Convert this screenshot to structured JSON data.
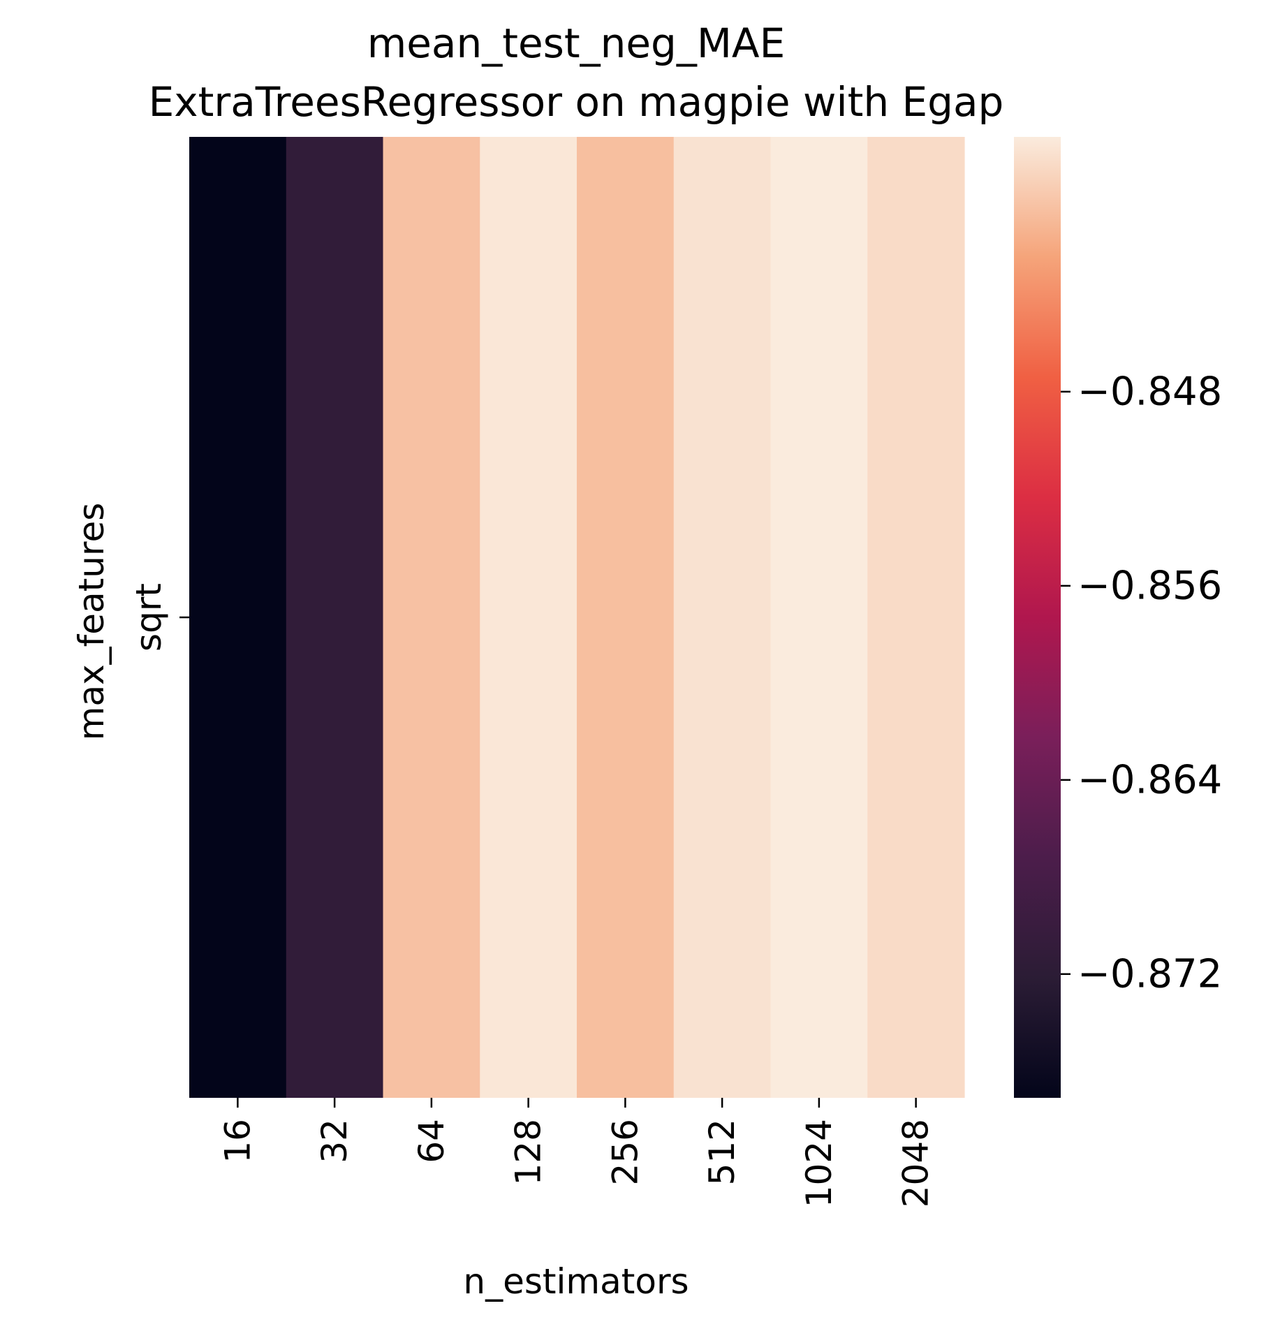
{
  "chart_data": {
    "type": "heatmap",
    "title": "mean_test_neg_MAE",
    "subtitle": "ExtraTreesRegressor on magpie with Egap",
    "xlabel": "n_estimators",
    "ylabel": "max_features",
    "x_categories": [
      "16",
      "32",
      "64",
      "128",
      "256",
      "512",
      "1024",
      "2048"
    ],
    "y_categories": [
      "sqrt"
    ],
    "values": [
      [
        -0.8771,
        -0.8713,
        -0.8404,
        -0.8378,
        -0.8406,
        -0.8381,
        -0.8375,
        -0.8386
      ]
    ],
    "colormap": "rocket",
    "colorbar": {
      "vmin": -0.8771,
      "vmax": -0.8375,
      "ticks": [
        -0.872,
        -0.864,
        -0.856,
        -0.848
      ],
      "tick_labels": [
        "−0.872",
        "−0.864",
        "−0.856",
        "−0.848"
      ]
    },
    "grid": false
  }
}
